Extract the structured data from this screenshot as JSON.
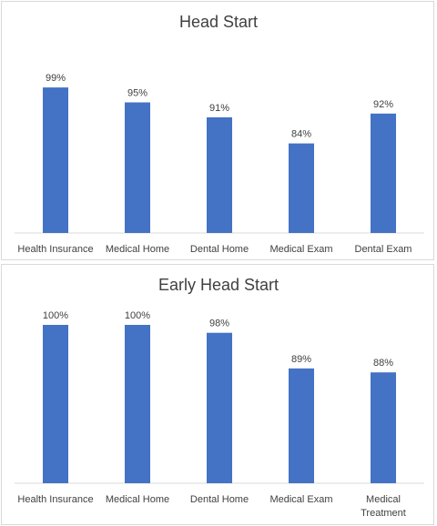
{
  "chart_data": [
    {
      "type": "bar",
      "title": "Head Start",
      "categories": [
        [
          "Health Insurance"
        ],
        [
          "Medical Home"
        ],
        [
          "Dental Home"
        ],
        [
          "Medical Exam"
        ],
        [
          "Dental Exam"
        ]
      ],
      "values": [
        99,
        95,
        91,
        84,
        92
      ],
      "data_labels": [
        "99%",
        "95%",
        "91%",
        "84%",
        "92%"
      ],
      "ylim": [
        60,
        100
      ],
      "grid": false,
      "legend": "none",
      "bar_color": "#4472c4"
    },
    {
      "type": "bar",
      "title": "Early Head Start",
      "categories": [
        [
          "Health Insurance"
        ],
        [
          "Medical Home"
        ],
        [
          "Dental Home"
        ],
        [
          "Medical Exam"
        ],
        [
          "Medical",
          "Treatment"
        ]
      ],
      "values": [
        100,
        100,
        98,
        89,
        88
      ],
      "data_labels": [
        "100%",
        "100%",
        "98%",
        "89%",
        "88%"
      ],
      "ylim": [
        60,
        100
      ],
      "grid": false,
      "legend": "none",
      "bar_color": "#4472c4"
    }
  ]
}
